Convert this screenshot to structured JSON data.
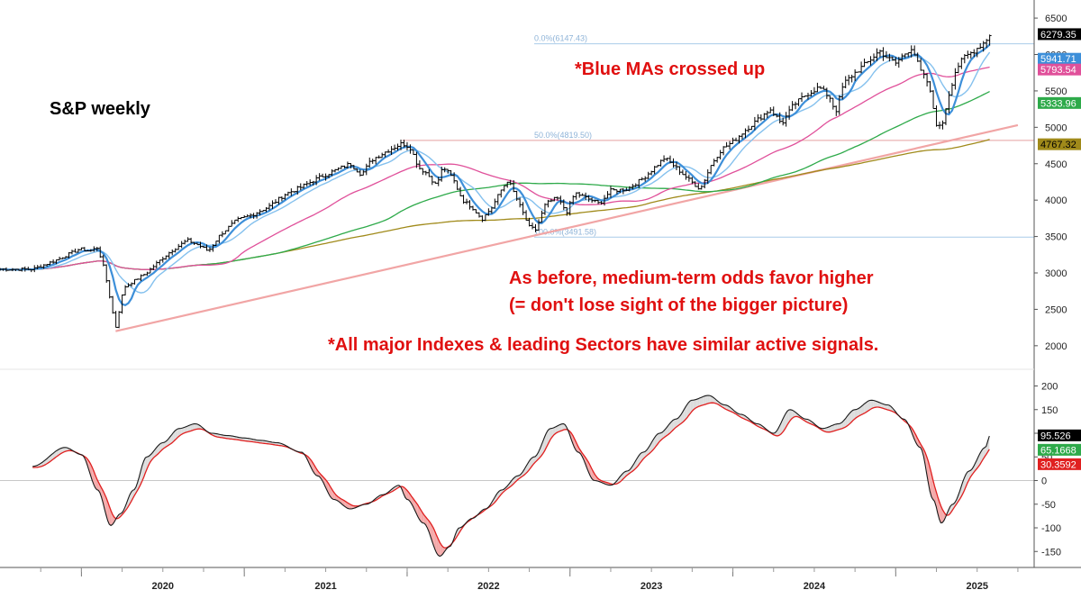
{
  "chart_data": [
    {
      "type": "line",
      "subtype": "ohlc-weekly",
      "title": "S&P weekly",
      "x_labels": [
        "2020",
        "2021",
        "2022",
        "2023",
        "2024",
        "2025"
      ],
      "y_ticks": [
        2000,
        2500,
        3000,
        3500,
        4000,
        4500,
        5000,
        5500,
        6000,
        6500
      ],
      "ylim": [
        1800,
        6600
      ],
      "grid": false,
      "price_path": [
        [
          "2019.70",
          3050
        ],
        [
          "2019.85",
          3180
        ],
        [
          "2019.99",
          3330
        ],
        [
          "2020.05",
          3300
        ],
        [
          "2020.10",
          3350
        ],
        [
          "2020.14",
          3050
        ],
        [
          "2020.18",
          2600
        ],
        [
          "2020.21",
          2240
        ],
        [
          "2020.26",
          2800
        ],
        [
          "2020.33",
          2900
        ],
        [
          "2020.40",
          3000
        ],
        [
          "2020.47",
          3150
        ],
        [
          "2020.55",
          3300
        ],
        [
          "2020.65",
          3450
        ],
        [
          "2020.72",
          3380
        ],
        [
          "2020.78",
          3300
        ],
        [
          "2020.85",
          3520
        ],
        [
          "2020.95",
          3720
        ],
        [
          "2021.05",
          3800
        ],
        [
          "2021.15",
          3910
        ],
        [
          "2021.25",
          4080
        ],
        [
          "2021.35",
          4180
        ],
        [
          "2021.45",
          4300
        ],
        [
          "2021.55",
          4400
        ],
        [
          "2021.65",
          4500
        ],
        [
          "2021.72",
          4350
        ],
        [
          "2021.78",
          4550
        ],
        [
          "2021.88",
          4680
        ],
        [
          "2021.97",
          4780
        ],
        [
          "2022.02",
          4720
        ],
        [
          "2022.07",
          4450
        ],
        [
          "2022.12",
          4370
        ],
        [
          "2022.18",
          4200
        ],
        [
          "2022.22",
          4460
        ],
        [
          "2022.28",
          4300
        ],
        [
          "2022.34",
          4000
        ],
        [
          "2022.40",
          3900
        ],
        [
          "2022.46",
          3740
        ],
        [
          "2022.52",
          3900
        ],
        [
          "2022.58",
          4150
        ],
        [
          "2022.62",
          4280
        ],
        [
          "2022.70",
          3880
        ],
        [
          "2022.75",
          3630
        ],
        [
          "2022.79",
          3590
        ],
        [
          "2022.85",
          3950
        ],
        [
          "2022.92",
          4030
        ],
        [
          "2022.98",
          3840
        ],
        [
          "2023.03",
          4100
        ],
        [
          "2023.10",
          4030
        ],
        [
          "2023.18",
          3950
        ],
        [
          "2023.25",
          4130
        ],
        [
          "2023.35",
          4150
        ],
        [
          "2023.45",
          4300
        ],
        [
          "2023.52",
          4450
        ],
        [
          "2023.58",
          4580
        ],
        [
          "2023.65",
          4450
        ],
        [
          "2023.72",
          4300
        ],
        [
          "2023.80",
          4150
        ],
        [
          "2023.87",
          4500
        ],
        [
          "2023.93",
          4700
        ],
        [
          "2024.00",
          4800
        ],
        [
          "2024.07",
          4950
        ],
        [
          "2024.15",
          5100
        ],
        [
          "2024.23",
          5250
        ],
        [
          "2024.30",
          5050
        ],
        [
          "2024.37",
          5300
        ],
        [
          "2024.45",
          5450
        ],
        [
          "2024.53",
          5550
        ],
        [
          "2024.60",
          5400
        ],
        [
          "2024.63",
          5200
        ],
        [
          "2024.68",
          5600
        ],
        [
          "2024.75",
          5750
        ],
        [
          "2024.83",
          5900
        ],
        [
          "2024.90",
          6050
        ],
        [
          "2024.95",
          5950
        ],
        [
          "2025.00",
          5880
        ],
        [
          "2025.05",
          6000
        ],
        [
          "2025.10",
          6100
        ],
        [
          "2025.15",
          5780
        ],
        [
          "2025.20",
          5600
        ],
        [
          "2025.25",
          5050
        ],
        [
          "2025.28",
          4980
        ],
        [
          "2025.32",
          5400
        ],
        [
          "2025.37",
          5800
        ],
        [
          "2025.42",
          5960
        ],
        [
          "2025.48",
          6050
        ],
        [
          "2025.55",
          6180
        ],
        [
          "2025.58",
          6290
        ]
      ],
      "series": [
        {
          "name": "blue MA (fast)",
          "color": "#3d8fd9"
        },
        {
          "name": "blue MA (slow)",
          "color": "#85c1ee"
        },
        {
          "name": "magenta MA",
          "color": "#e0509a"
        },
        {
          "name": "green MA",
          "color": "#2eaa4a"
        },
        {
          "name": "olive MA",
          "color": "#a08a1a"
        }
      ],
      "horizontal_lines": [
        {
          "label": "0.0%(6147.43)",
          "value": 6147.43,
          "color": "#a9cbe8"
        },
        {
          "label": "50.0%(4819.50)",
          "value": 4819.5,
          "color": "#e5a0a0"
        },
        {
          "label": "100.0%(3491.58)",
          "value": 3491.58,
          "color": "#a9cbe8"
        }
      ],
      "trendline": {
        "color": "#f1a5a5",
        "from": [
          "2020.21",
          2200
        ],
        "to": [
          "2025.75",
          5030
        ]
      },
      "price_labels": [
        {
          "text": "6279.35",
          "value": 6279.35,
          "bg": "#000000",
          "fg": "#ffffff"
        },
        {
          "text": "5941.71",
          "value": 5941.71,
          "bg": "#3d8fd9",
          "fg": "#ffffff"
        },
        {
          "text": "5793.54",
          "value": 5793.54,
          "bg": "#e0509a",
          "fg": "#ffffff"
        },
        {
          "text": "5333.96",
          "value": 5333.96,
          "bg": "#2eaa4a",
          "fg": "#ffffff"
        },
        {
          "text": "4767.32",
          "value": 4767.32,
          "bg": "#a08a1a",
          "fg": "#000000"
        }
      ]
    },
    {
      "type": "line",
      "subtype": "oscillator",
      "y_ticks": [
        -150,
        -100,
        -50,
        0,
        50,
        100,
        150,
        200
      ],
      "ylim": [
        -180,
        220
      ],
      "zero_line": true,
      "grid": false,
      "osc_path": [
        [
          "2019.70",
          30
        ],
        [
          "2019.90",
          70
        ],
        [
          "2020.00",
          55
        ],
        [
          "2020.10",
          -20
        ],
        [
          "2020.18",
          -95
        ],
        [
          "2020.24",
          -70
        ],
        [
          "2020.32",
          -20
        ],
        [
          "2020.40",
          50
        ],
        [
          "2020.50",
          80
        ],
        [
          "2020.60",
          110
        ],
        [
          "2020.70",
          120
        ],
        [
          "2020.80",
          100
        ],
        [
          "2020.90",
          95
        ],
        [
          "2021.00",
          90
        ],
        [
          "2021.10",
          85
        ],
        [
          "2021.20",
          80
        ],
        [
          "2021.35",
          60
        ],
        [
          "2021.45",
          10
        ],
        [
          "2021.55",
          -40
        ],
        [
          "2021.65",
          -60
        ],
        [
          "2021.75",
          -50
        ],
        [
          "2021.85",
          -30
        ],
        [
          "2021.95",
          -10
        ],
        [
          "2022.00",
          -40
        ],
        [
          "2022.10",
          -90
        ],
        [
          "2022.20",
          -160
        ],
        [
          "2022.26",
          -140
        ],
        [
          "2022.32",
          -100
        ],
        [
          "2022.40",
          -80
        ],
        [
          "2022.48",
          -60
        ],
        [
          "2022.58",
          -20
        ],
        [
          "2022.68",
          10
        ],
        [
          "2022.78",
          50
        ],
        [
          "2022.88",
          110
        ],
        [
          "2022.96",
          120
        ],
        [
          "2023.05",
          60
        ],
        [
          "2023.15",
          0
        ],
        [
          "2023.25",
          -10
        ],
        [
          "2023.35",
          20
        ],
        [
          "2023.45",
          60
        ],
        [
          "2023.55",
          100
        ],
        [
          "2023.65",
          130
        ],
        [
          "2023.75",
          170
        ],
        [
          "2023.85",
          180
        ],
        [
          "2023.95",
          160
        ],
        [
          "2024.05",
          140
        ],
        [
          "2024.15",
          120
        ],
        [
          "2024.25",
          100
        ],
        [
          "2024.35",
          150
        ],
        [
          "2024.45",
          130
        ],
        [
          "2024.55",
          110
        ],
        [
          "2024.65",
          120
        ],
        [
          "2024.75",
          150
        ],
        [
          "2024.85",
          170
        ],
        [
          "2024.95",
          160
        ],
        [
          "2025.05",
          130
        ],
        [
          "2025.15",
          70
        ],
        [
          "2025.23",
          -40
        ],
        [
          "2025.28",
          -90
        ],
        [
          "2025.35",
          -50
        ],
        [
          "2025.45",
          20
        ],
        [
          "2025.55",
          70
        ],
        [
          "2025.58",
          96
        ]
      ],
      "signal_lag": 0.06,
      "series": [
        {
          "name": "oscillator",
          "color": "#1a1a1a"
        },
        {
          "name": "signal",
          "color": "#e02020"
        }
      ],
      "value_labels": [
        {
          "text": "95.526",
          "value": 95.526,
          "bg": "#000000",
          "fg": "#ffffff"
        },
        {
          "text": "65.1668",
          "value": 65.1668,
          "bg": "#2eaa4a",
          "fg": "#ffffff"
        },
        {
          "text": "30.3592",
          "value": 30.3592,
          "bg": "#e02020",
          "fg": "#ffffff"
        }
      ]
    }
  ],
  "annotations": {
    "title": "S&P weekly",
    "blue_ma": "*Blue MAs crossed up",
    "medium_term_1": "As before, medium-term odds favor higher",
    "medium_term_2": "(= don't lose sight of the bigger picture)",
    "indexes_note": "*All major Indexes & leading Sectors have similar active signals."
  },
  "colors": {
    "annotation_red": "#e01010",
    "title_black": "#000000"
  }
}
